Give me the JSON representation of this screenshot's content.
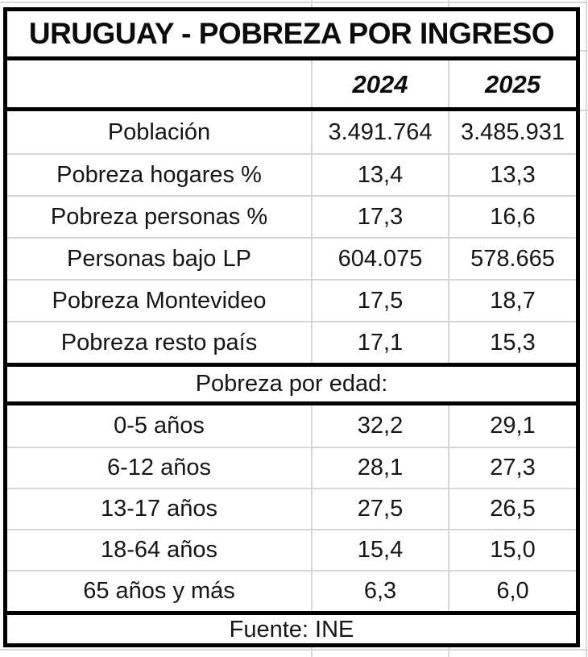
{
  "chart_data": {
    "type": "table",
    "title": "URUGUAY - POBREZA POR INGRESO",
    "year_columns": [
      "2024",
      "2025"
    ],
    "indicators": [
      {
        "label": "Población",
        "y2024": "3.491.764",
        "y2025": "3.485.931"
      },
      {
        "label": "Pobreza hogares %",
        "y2024": "13,4",
        "y2025": "13,3"
      },
      {
        "label": "Pobreza personas %",
        "y2024": "17,3",
        "y2025": "16,6"
      },
      {
        "label": "Personas bajo LP",
        "y2024": "604.075",
        "y2025": "578.665"
      },
      {
        "label": "Pobreza Montevideo",
        "y2024": "17,5",
        "y2025": "18,7"
      },
      {
        "label": "Pobreza resto país",
        "y2024": "17,1",
        "y2025": "15,3"
      }
    ],
    "age_section_label": "Pobreza por edad:",
    "age_groups": [
      {
        "label": "0-5 años",
        "y2024": "32,2",
        "y2025": "29,1"
      },
      {
        "label": "6-12 años",
        "y2024": "28,1",
        "y2025": "27,3"
      },
      {
        "label": "13-17 años",
        "y2024": "27,5",
        "y2025": "26,5"
      },
      {
        "label": "18-64 años",
        "y2024": "15,4",
        "y2025": "15,0"
      },
      {
        "label": "65 años y más",
        "y2024": "6,3",
        "y2025": "6,0"
      }
    ],
    "source": "Fuente: INE"
  },
  "colors": {
    "table_border": "#000000",
    "inner_gridline": "#d6d6d6",
    "sheet_gridline": "#d9d9d9",
    "text": "#161616",
    "background": "#ffffff"
  }
}
